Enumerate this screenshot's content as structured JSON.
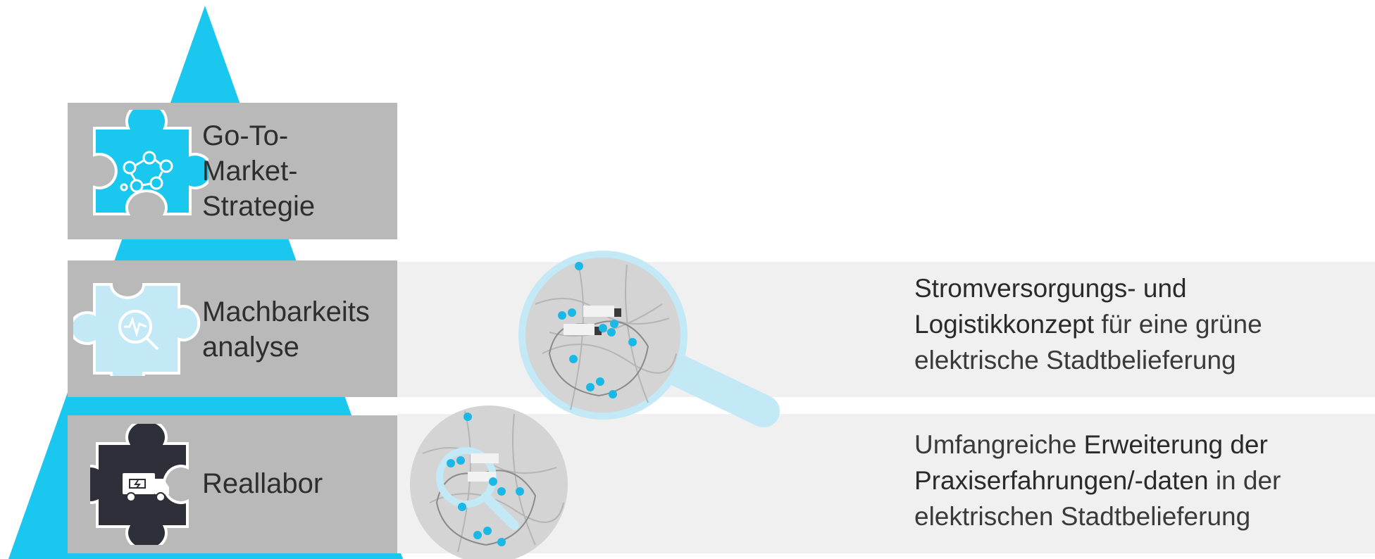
{
  "levels": [
    {
      "label": "Go-To-\nMarket-\nStrategie",
      "icon": "network-icon",
      "color": "#1ac8ef"
    },
    {
      "label": "Machbarkeits\nanalyse",
      "icon": "magnifier-pulse-icon",
      "color": "#c2e9f5"
    },
    {
      "label": "Reallabor",
      "icon": "electric-truck-icon",
      "color": "#2e2f38"
    }
  ],
  "descriptions": [
    {
      "parts": [
        "Stromversorgungs- und",
        "Logistikkonzept",
        " für eine grüne",
        "elektrische Stadtbelieferung"
      ]
    },
    {
      "parts": [
        "Umfangreiche ",
        "Erweiterung der",
        "Praxiserfahrungen/-daten",
        " in der",
        "elektrischen Stadtbelieferung"
      ]
    }
  ],
  "colors": {
    "pyramid": "#1ac8ef",
    "box": "#b9b9b9",
    "band": "#f0f0f0",
    "pin": "#1ab8e6"
  }
}
